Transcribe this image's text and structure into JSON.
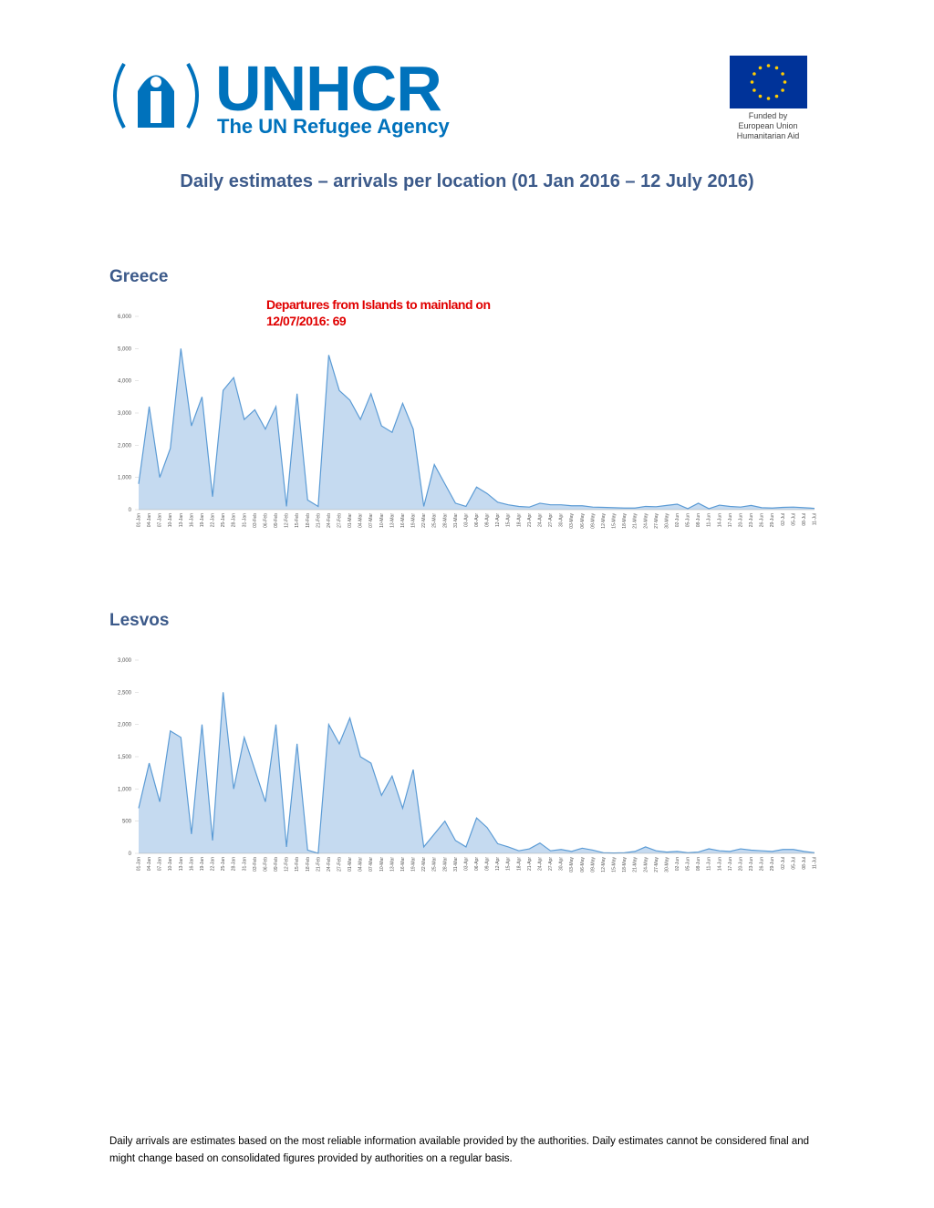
{
  "header": {
    "logo": "UNHCR",
    "logo_subtitle": "The UN Refugee Agency",
    "eu_text": [
      "Funded by",
      "European Union",
      "Humanitarian Aid"
    ]
  },
  "title": "Daily estimates – arrivals per location (01 Jan 2016 – 12 July 2016)",
  "chart_data": [
    {
      "type": "area",
      "title": "Greece",
      "color": "#5b9bd5",
      "fill": "#c5daf0",
      "annotation": "Departures from Islands to mainland on 12/07/2016: 69",
      "categories": [
        "01-Jan",
        "04-Jan",
        "07-Jan",
        "10-Jan",
        "13-Jan",
        "16-Jan",
        "19-Jan",
        "22-Jan",
        "25-Jan",
        "28-Jan",
        "31-Jan",
        "03-Feb",
        "06-Feb",
        "09-Feb",
        "12-Feb",
        "15-Feb",
        "18-Feb",
        "21-Feb",
        "24-Feb",
        "27-Feb",
        "01-Mar",
        "04-Mar",
        "07-Mar",
        "10-Mar",
        "13-Mar",
        "16-Mar",
        "19-Mar",
        "22-Mar",
        "25-Mar",
        "28-Mar",
        "31-Mar",
        "03-Apr",
        "06-Apr",
        "09-Apr",
        "12-Apr",
        "15-Apr",
        "18-Apr",
        "21-Apr",
        "24-Apr",
        "27-Apr",
        "30-Apr",
        "03-May",
        "06-May",
        "09-May",
        "12-May",
        "15-May",
        "18-May",
        "21-May",
        "24-May",
        "27-May",
        "30-May",
        "02-Jun",
        "05-Jun",
        "08-Jun",
        "11-Jun",
        "14-Jun",
        "17-Jun",
        "20-Jun",
        "23-Jun",
        "26-Jun",
        "29-Jun",
        "02-Jul",
        "05-Jul",
        "08-Jul",
        "11-Jul"
      ],
      "values": [
        800,
        3200,
        1000,
        1900,
        5000,
        2600,
        3500,
        400,
        3700,
        4100,
        2800,
        3100,
        2500,
        3200,
        100,
        3600,
        300,
        100,
        4800,
        3700,
        3400,
        2800,
        3600,
        2600,
        2400,
        3300,
        2500,
        100,
        1400,
        800,
        200,
        100,
        700,
        500,
        230,
        150,
        100,
        80,
        200,
        150,
        150,
        120,
        120,
        80,
        70,
        60,
        50,
        50,
        100,
        90,
        130,
        170,
        30,
        200,
        30,
        140,
        100,
        80,
        130,
        60,
        50,
        70,
        80,
        60,
        40
      ],
      "ylim": [
        0,
        6000
      ],
      "yticks": [
        0,
        {
          "value": 1000,
          "label": "1,000"
        },
        {
          "value": 2000,
          "label": "2,000"
        },
        {
          "value": 3000,
          "label": "3,000"
        },
        {
          "value": 4000,
          "label": "4,000"
        },
        {
          "value": 5000,
          "label": "5,000"
        },
        {
          "value": 6000,
          "label": "6,000"
        }
      ]
    },
    {
      "type": "area",
      "title": "Lesvos",
      "color": "#5b9bd5",
      "fill": "#c5daf0",
      "categories": [
        "01-Jan",
        "04-Jan",
        "07-Jan",
        "10-Jan",
        "13-Jan",
        "16-Jan",
        "19-Jan",
        "22-Jan",
        "25-Jan",
        "28-Jan",
        "31-Jan",
        "03-Feb",
        "06-Feb",
        "09-Feb",
        "12-Feb",
        "15-Feb",
        "18-Feb",
        "21-Feb",
        "24-Feb",
        "27-Feb",
        "01-Mar",
        "04-Mar",
        "07-Mar",
        "10-Mar",
        "13-Mar",
        "16-Mar",
        "19-Mar",
        "22-Mar",
        "25-Mar",
        "28-Mar",
        "31-Mar",
        "03-Apr",
        "06-Apr",
        "09-Apr",
        "12-Apr",
        "15-Apr",
        "18-Apr",
        "21-Apr",
        "24-Apr",
        "27-Apr",
        "30-Apr",
        "03-May",
        "06-May",
        "09-May",
        "12-May",
        "15-May",
        "18-May",
        "21-May",
        "24-May",
        "27-May",
        "30-May",
        "02-Jun",
        "05-Jun",
        "08-Jun",
        "11-Jun",
        "14-Jun",
        "17-Jun",
        "20-Jun",
        "23-Jun",
        "26-Jun",
        "29-Jun",
        "02-Jul",
        "05-Jul",
        "08-Jul",
        "11-Jul"
      ],
      "values": [
        700,
        1400,
        800,
        1900,
        1800,
        300,
        2000,
        200,
        2500,
        1000,
        1800,
        1300,
        800,
        2000,
        100,
        1700,
        50,
        0,
        2000,
        1700,
        2100,
        1500,
        1400,
        900,
        1200,
        700,
        1300,
        100,
        300,
        500,
        200,
        100,
        550,
        400,
        150,
        100,
        40,
        70,
        160,
        40,
        60,
        30,
        80,
        50,
        10,
        5,
        10,
        30,
        100,
        40,
        20,
        30,
        10,
        20,
        70,
        40,
        30,
        70,
        50,
        40,
        30,
        60,
        60,
        30,
        10
      ],
      "ylim": [
        0,
        3000
      ],
      "yticks": [
        0,
        500,
        {
          "value": 1000,
          "label": "1,000"
        },
        {
          "value": 1500,
          "label": "1,500"
        },
        {
          "value": 2000,
          "label": "2,000"
        },
        {
          "value": 2500,
          "label": "2,500"
        },
        {
          "value": 3000,
          "label": "3,000"
        }
      ]
    }
  ],
  "footer": "Daily arrivals are estimates based on the most reliable information available provided by the authorities. Daily estimates cannot be considered final and might change based on consolidated figures provided by authorities on a regular basis."
}
